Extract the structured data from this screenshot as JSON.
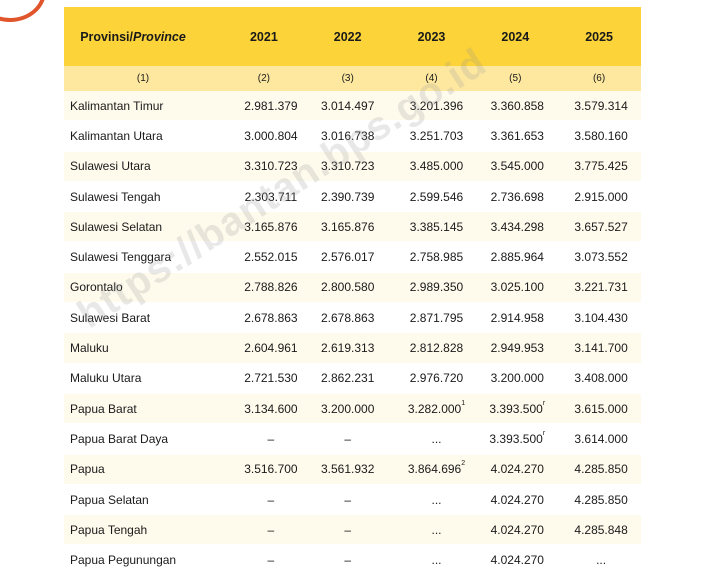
{
  "header": {
    "province_label": "Provinsi/",
    "province_label_en": "Province",
    "years": [
      "2021",
      "2022",
      "2023",
      "2024",
      "2025"
    ],
    "column_numbers": [
      "(1)",
      "(2)",
      "(3)",
      "(4)",
      "(5)",
      "(6)"
    ]
  },
  "rows": [
    {
      "name": "Kalimantan Timur",
      "values": [
        "2.981.379",
        "3.014.497",
        "3.201.396",
        "3.360.858",
        "3.579.314"
      ],
      "notes": [
        "",
        "",
        "",
        "",
        ""
      ]
    },
    {
      "name": "Kalimantan Utara",
      "values": [
        "3.000.804",
        "3.016.738",
        "3.251.703",
        "3.361.653",
        "3.580.160"
      ],
      "notes": [
        "",
        "",
        "",
        "",
        ""
      ]
    },
    {
      "name": "Sulawesi Utara",
      "values": [
        "3.310.723",
        "3.310.723",
        "3.485.000",
        "3.545.000",
        "3.775.425"
      ],
      "notes": [
        "",
        "",
        "",
        "",
        ""
      ]
    },
    {
      "name": "Sulawesi Tengah",
      "values": [
        "2.303.711",
        "2.390.739",
        "2.599.546",
        "2.736.698",
        "2.915.000"
      ],
      "notes": [
        "",
        "",
        "",
        "",
        ""
      ]
    },
    {
      "name": "Sulawesi Selatan",
      "values": [
        "3.165.876",
        "3.165.876",
        "3.385.145",
        "3.434.298",
        "3.657.527"
      ],
      "notes": [
        "",
        "",
        "",
        "",
        ""
      ]
    },
    {
      "name": "Sulawesi Tenggara",
      "values": [
        "2.552.015",
        "2.576.017",
        "2.758.985",
        "2.885.964",
        "3.073.552"
      ],
      "notes": [
        "",
        "",
        "",
        "",
        ""
      ]
    },
    {
      "name": "Gorontalo",
      "values": [
        "2.788.826",
        "2.800.580",
        "2.989.350",
        "3.025.100",
        "3.221.731"
      ],
      "notes": [
        "",
        "",
        "",
        "",
        ""
      ]
    },
    {
      "name": "Sulawesi Barat",
      "values": [
        "2.678.863",
        "2.678.863",
        "2.871.795",
        "2.914.958",
        "3.104.430"
      ],
      "notes": [
        "",
        "",
        "",
        "",
        ""
      ]
    },
    {
      "name": "Maluku",
      "values": [
        "2.604.961",
        "2.619.313",
        "2.812.828",
        "2.949.953",
        "3.141.700"
      ],
      "notes": [
        "",
        "",
        "",
        "",
        ""
      ]
    },
    {
      "name": "Maluku Utara",
      "values": [
        "2.721.530",
        "2.862.231",
        "2.976.720",
        "3.200.000",
        "3.408.000"
      ],
      "notes": [
        "",
        "",
        "",
        "",
        ""
      ]
    },
    {
      "name": "Papua Barat",
      "values": [
        "3.134.600",
        "3.200.000",
        "3.282.000",
        "3.393.500",
        "3.615.000"
      ],
      "notes": [
        "",
        "",
        "1",
        "r",
        ""
      ]
    },
    {
      "name": "Papua Barat Daya",
      "values": [
        "–",
        "–",
        "...",
        "3.393.500",
        "3.614.000"
      ],
      "notes": [
        "",
        "",
        "",
        "r",
        ""
      ]
    },
    {
      "name": "Papua",
      "values": [
        "3.516.700",
        "3.561.932",
        "3.864.696",
        "4.024.270",
        "4.285.850"
      ],
      "notes": [
        "",
        "",
        "2",
        "",
        ""
      ]
    },
    {
      "name": "Papua Selatan",
      "values": [
        "–",
        "–",
        "...",
        "4.024.270",
        "4.285.850"
      ],
      "notes": [
        "",
        "",
        "",
        "",
        ""
      ]
    },
    {
      "name": "Papua Tengah",
      "values": [
        "–",
        "–",
        "...",
        "4.024.270",
        "4.285.848"
      ],
      "notes": [
        "",
        "",
        "",
        "",
        ""
      ]
    },
    {
      "name": "Papua Pegunungan",
      "values": [
        "–",
        "–",
        "...",
        "4.024.270",
        "..."
      ],
      "notes": [
        "",
        "",
        "",
        "",
        ""
      ]
    }
  ],
  "watermark": "https://bantan.bps.go.id",
  "colors": {
    "header_bg": "#fcd338",
    "subheader_bg": "#fee8a0",
    "row_alt_bg": "#fefaec",
    "badge_border": "#e0552b"
  }
}
